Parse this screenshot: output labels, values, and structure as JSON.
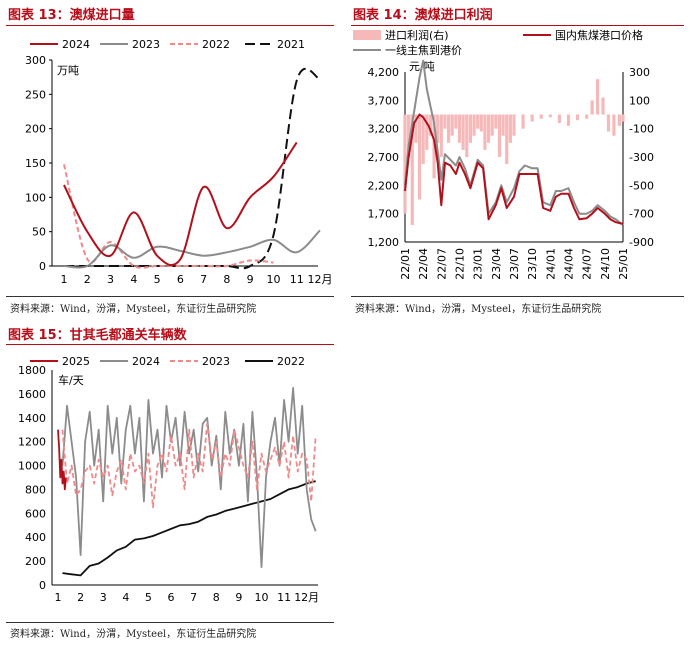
{
  "source_note": "资料来源：Wind，汾渭，Mysteel，东证衍生品研究院",
  "colors": {
    "accent": "#b80d18",
    "dark_red": "#b2111c",
    "gray": "#8c8c8c",
    "pink": "#f08a8a",
    "black": "#111111",
    "pink_fill": "#f6b9b9"
  },
  "chart_data": [
    {
      "id": "chart13",
      "figure_title": "图表 13：澳煤进口量",
      "type": "line",
      "unit_label": "万吨",
      "x_tick_labels": [
        "1",
        "2",
        "3",
        "4",
        "5",
        "6",
        "7",
        "8",
        "9",
        "10",
        "11",
        "12月"
      ],
      "ylim": [
        0,
        300
      ],
      "y_ticks": [
        0,
        50,
        100,
        150,
        200,
        250,
        300
      ],
      "legend": [
        "2024",
        "2023",
        "2022",
        "2021"
      ],
      "legend_position": "top",
      "series": [
        {
          "name": "2024",
          "color": "#b2111c",
          "dash": "solid",
          "x": [
            1,
            2,
            3,
            4,
            5,
            6,
            7,
            8,
            9,
            10,
            11
          ],
          "y": [
            118,
            50,
            15,
            78,
            15,
            10,
            115,
            55,
            100,
            130,
            180
          ]
        },
        {
          "name": "2023",
          "color": "#8c8c8c",
          "dash": "solid",
          "x": [
            1,
            2,
            3,
            4,
            5,
            6,
            7,
            8,
            9,
            10,
            11,
            12
          ],
          "y": [
            0,
            0,
            30,
            12,
            28,
            22,
            15,
            20,
            28,
            38,
            20,
            52
          ]
        },
        {
          "name": "2022",
          "color": "#f08a8a",
          "dash": "dashed",
          "x": [
            1,
            2,
            3,
            4,
            5,
            6,
            7,
            8,
            9,
            10
          ],
          "y": [
            148,
            10,
            35,
            0,
            0,
            0,
            0,
            0,
            8,
            5
          ]
        },
        {
          "name": "2021",
          "color": "#111111",
          "dash": "longdash",
          "x": [
            1,
            2,
            3,
            4,
            5,
            6,
            7,
            8,
            9,
            10,
            11,
            12
          ],
          "y": [
            0,
            0,
            0,
            0,
            0,
            0,
            0,
            0,
            0,
            45,
            270,
            272
          ]
        }
      ]
    },
    {
      "id": "chart14",
      "figure_title": "图表 14：澳煤进口利润",
      "type": "line",
      "unit_label": "元/吨",
      "x_tick_labels": [
        "22/01",
        "22/04",
        "22/07",
        "22/10",
        "23/01",
        "23/04",
        "23/07",
        "23/10",
        "24/01",
        "24/04",
        "24/07",
        "24/10",
        "25/01"
      ],
      "ylim_left": [
        1200,
        4200
      ],
      "y_ticks_left": [
        1200,
        1700,
        2200,
        2700,
        3200,
        3700,
        4200
      ],
      "y_ticks_left_labels": [
        "1,200",
        "1,700",
        "2,200",
        "2,700",
        "3,200",
        "3,700",
        "4,200"
      ],
      "ylim_right": [
        -900,
        300
      ],
      "y_ticks_right": [
        -900,
        -700,
        -500,
        -300,
        -100,
        100,
        300
      ],
      "legend": [
        "进口利润(右)",
        "国内焦煤港口价格",
        "一线主焦到港价"
      ],
      "legend_position": "top",
      "series": [
        {
          "name": "进口利润(右)",
          "axis": "right",
          "color": "#f6b9b9",
          "style": "bars",
          "x": [
            0,
            0.2,
            0.4,
            0.6,
            0.8,
            1,
            1.2,
            1.4,
            1.6,
            1.8,
            2,
            2.2,
            2.4,
            2.6,
            2.8,
            3,
            3.2,
            3.4,
            3.6,
            3.8,
            4,
            4.2,
            4.4,
            4.6,
            4.8,
            5,
            5.2,
            5.4,
            5.6,
            5.8,
            6,
            6.5,
            7,
            7.5,
            8,
            8.5,
            9,
            9.5,
            10,
            10.3,
            10.6,
            10.9,
            11.2,
            11.5,
            11.8,
            12
          ],
          "y": [
            -700,
            -300,
            -780,
            -200,
            -600,
            -350,
            -250,
            -150,
            -450,
            -200,
            -300,
            -100,
            -200,
            -150,
            -100,
            -200,
            -250,
            -300,
            -200,
            -150,
            -100,
            -120,
            -250,
            -200,
            -150,
            -100,
            -300,
            -150,
            -350,
            -200,
            -150,
            -100,
            -50,
            -30,
            -20,
            -60,
            -80,
            -40,
            -30,
            100,
            250,
            120,
            -120,
            -150,
            -80,
            -50
          ]
        },
        {
          "name": "国内焦煤港口价格",
          "axis": "left",
          "color": "#b2111c",
          "style": "line",
          "x": [
            0,
            0.2,
            0.5,
            0.8,
            1,
            1.3,
            1.6,
            1.8,
            2,
            2.2,
            2.5,
            2.8,
            3,
            3.3,
            3.6,
            4,
            4.3,
            4.6,
            5,
            5.3,
            5.6,
            6,
            6.3,
            6.6,
            7,
            7.3,
            7.6,
            8,
            8.3,
            8.6,
            9,
            9.3,
            9.6,
            10,
            10.3,
            10.6,
            11,
            11.3,
            11.6,
            12
          ],
          "y": [
            2100,
            2700,
            3300,
            3450,
            3400,
            3250,
            3000,
            2600,
            1850,
            2600,
            2550,
            2400,
            2600,
            2400,
            2150,
            2600,
            2500,
            1600,
            1850,
            2150,
            1800,
            2000,
            2400,
            2400,
            2400,
            2400,
            1800,
            1750,
            2000,
            2050,
            2050,
            1800,
            1600,
            1620,
            1700,
            1800,
            1700,
            1600,
            1550,
            1520
          ]
        },
        {
          "name": "一线主焦到港价",
          "axis": "left",
          "color": "#8c8c8c",
          "style": "line",
          "x": [
            0,
            0.2,
            0.5,
            0.8,
            1,
            1.2,
            1.4,
            1.6,
            1.8,
            2,
            2.2,
            2.5,
            2.8,
            3,
            3.3,
            3.6,
            4,
            4.3,
            4.6,
            5,
            5.3,
            5.6,
            6,
            6.3,
            6.6,
            7,
            7.3,
            7.6,
            8,
            8.3,
            8.6,
            9,
            9.3,
            9.6,
            10,
            10.3,
            10.6,
            11,
            11.3,
            11.6,
            12
          ],
          "y": [
            2200,
            2900,
            3500,
            4100,
            4400,
            3900,
            3600,
            3300,
            2800,
            2300,
            2750,
            2650,
            2550,
            2700,
            2500,
            2200,
            2650,
            2550,
            1700,
            1900,
            2200,
            1900,
            2150,
            2450,
            2550,
            2500,
            2500,
            1900,
            1850,
            2100,
            2100,
            2150,
            1900,
            1700,
            1700,
            1750,
            1850,
            1750,
            1650,
            1600,
            1500
          ]
        }
      ]
    },
    {
      "id": "chart15",
      "figure_title": "图表 15：甘其毛都通关车辆数",
      "type": "line",
      "unit_label": "车/天",
      "x_tick_labels": [
        "1",
        "2",
        "3",
        "4",
        "5",
        "6",
        "7",
        "8",
        "9",
        "10",
        "11",
        "12月"
      ],
      "ylim": [
        0,
        1800
      ],
      "y_ticks": [
        0,
        200,
        400,
        600,
        800,
        1000,
        1200,
        1400,
        1600,
        1800
      ],
      "legend": [
        "2025",
        "2024",
        "2023",
        "2022"
      ],
      "legend_position": "top",
      "series": [
        {
          "name": "2025",
          "color": "#b2111c",
          "dash": "solid",
          "x": [
            1.0,
            1.05,
            1.1,
            1.15,
            1.2,
            1.25,
            1.3,
            1.35
          ],
          "y": [
            1300,
            1150,
            900,
            1050,
            850,
            950,
            800,
            900
          ]
        },
        {
          "name": "2024",
          "color": "#8c8c8c",
          "dash": "solid",
          "x": [
            1.2,
            1.4,
            1.6,
            1.8,
            2,
            2.2,
            2.4,
            2.6,
            2.8,
            3,
            3.2,
            3.4,
            3.6,
            3.8,
            4,
            4.2,
            4.4,
            4.6,
            4.8,
            5,
            5.2,
            5.4,
            5.6,
            5.8,
            6,
            6.2,
            6.4,
            6.6,
            6.8,
            7,
            7.2,
            7.4,
            7.6,
            7.8,
            8,
            8.2,
            8.4,
            8.6,
            8.8,
            9,
            9.2,
            9.4,
            9.6,
            9.8,
            10,
            10.2,
            10.4,
            10.6,
            10.8,
            11,
            11.2,
            11.4,
            11.6,
            11.8,
            12,
            12.2,
            12.4
          ],
          "y": [
            1000,
            1500,
            1200,
            900,
            250,
            1200,
            1450,
            1000,
            1300,
            700,
            1500,
            1100,
            1400,
            850,
            1300,
            1500,
            1100,
            1400,
            700,
            1550,
            1100,
            1300,
            900,
            1500,
            1200,
            1400,
            1000,
            1450,
            1100,
            1300,
            950,
            1350,
            1400,
            1000,
            1250,
            800,
            1450,
            1100,
            1300,
            1000,
            1350,
            700,
            1450,
            900,
            150,
            900,
            1200,
            1400,
            1000,
            1550,
            1200,
            1650,
            1100,
            1500,
            800,
            550,
            450
          ]
        },
        {
          "name": "2023",
          "color": "#f08a8a",
          "dash": "dashed",
          "x": [
            1.2,
            1.4,
            1.6,
            1.8,
            2,
            2.2,
            2.4,
            2.6,
            2.8,
            3,
            3.2,
            3.4,
            3.6,
            3.8,
            4,
            4.2,
            4.4,
            4.6,
            4.8,
            5,
            5.2,
            5.4,
            5.6,
            5.8,
            6,
            6.2,
            6.4,
            6.6,
            6.8,
            7,
            7.2,
            7.4,
            7.6,
            7.8,
            8,
            8.2,
            8.4,
            8.6,
            8.8,
            9,
            9.2,
            9.4,
            9.6,
            9.8,
            10,
            10.2,
            10.4,
            10.6,
            10.8,
            11,
            11.2,
            11.4,
            11.6,
            11.8,
            12,
            12.2,
            12.4
          ],
          "y": [
            1300,
            850,
            1000,
            750,
            800,
            950,
            1000,
            850,
            1050,
            900,
            1000,
            750,
            950,
            1050,
            800,
            1100,
            950,
            1000,
            850,
            1100,
            650,
            1000,
            1100,
            950,
            1250,
            1000,
            1100,
            800,
            1300,
            900,
            1100,
            950,
            1350,
            1050,
            1200,
            900,
            1100,
            1000,
            1300,
            1150,
            1000,
            900,
            1200,
            800,
            1100,
            950,
            1050,
            1150,
            1000,
            1200,
            900,
            1250,
            950,
            1100,
            1050,
            700,
            1250
          ]
        },
        {
          "name": "2022",
          "color": "#111111",
          "dash": "solid",
          "x": [
            1.2,
            1.6,
            2,
            2.4,
            2.8,
            3.2,
            3.6,
            4,
            4.4,
            4.8,
            5.2,
            5.6,
            6,
            6.4,
            6.8,
            7.2,
            7.6,
            8,
            8.4,
            8.8,
            9.2,
            9.6,
            10,
            10.4,
            10.8,
            11.2,
            11.6,
            12,
            12.4
          ],
          "y": [
            100,
            90,
            80,
            160,
            180,
            230,
            290,
            320,
            380,
            390,
            410,
            440,
            470,
            500,
            510,
            530,
            570,
            590,
            620,
            640,
            660,
            680,
            700,
            720,
            760,
            800,
            820,
            850,
            870
          ]
        }
      ]
    }
  ]
}
